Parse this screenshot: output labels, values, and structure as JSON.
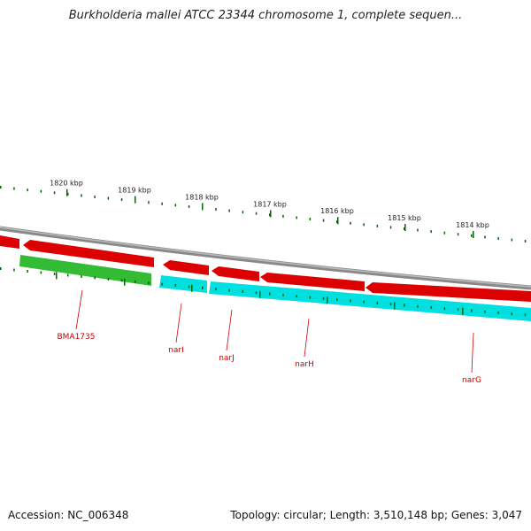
{
  "title": "Burkholderia mallei ATCC 23344 chromosome 1, complete sequen...",
  "footer": {
    "accession": "Accession: NC_006348",
    "summary": "Topology: circular; Length: 3,510,148 bp; Genes: 3,047"
  },
  "colors": {
    "backbone": "#888888",
    "forward_gene": "#dd0000",
    "reverse_gene_cds": "#00e0e0",
    "reverse_gene_other": "#33bb33",
    "tick": "#006600",
    "label": "#cc0000"
  },
  "ruler": {
    "unit": "kbp",
    "labels": [
      "1820 kbp",
      "1819 kbp",
      "1818 kbp",
      "1817 kbp",
      "1816 kbp",
      "1815 kbp",
      "1814 kbp"
    ]
  },
  "genes": [
    {
      "name": "BMA1735",
      "strand": "reverse",
      "type": "other"
    },
    {
      "name": "narI",
      "strand": "reverse",
      "type": "cds"
    },
    {
      "name": "narJ",
      "strand": "reverse",
      "type": "cds"
    },
    {
      "name": "narH",
      "strand": "reverse",
      "type": "cds"
    },
    {
      "name": "narG",
      "strand": "reverse",
      "type": "cds"
    }
  ]
}
